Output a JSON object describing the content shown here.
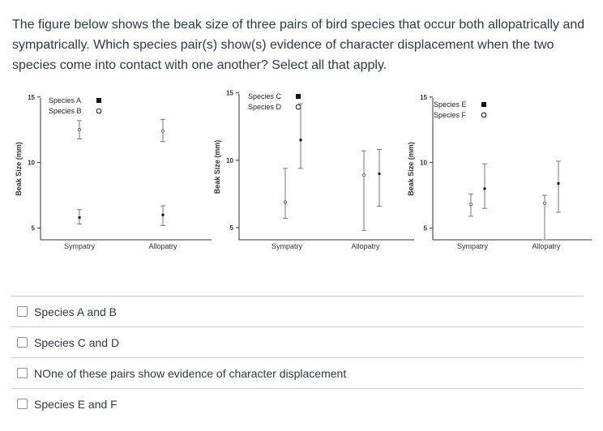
{
  "question": {
    "text": "The figure below shows the beak size of three pairs of bird species that occur both allopatrically and sympatrically. Which species pair(s) show(s) evidence of character displacement when the two species come into contact with one another? Select all that apply."
  },
  "options": [
    {
      "label": "Species A and B",
      "checked": false
    },
    {
      "label": "Species C and D",
      "checked": false
    },
    {
      "label": "NOne of these pairs show evidence of character displacement",
      "checked": false
    },
    {
      "label": "Species E and F",
      "checked": false
    }
  ],
  "colors": {
    "text": "#2d3b45",
    "divider": "#c7cdd1",
    "axis": "#333333",
    "error_bar": "#777777"
  },
  "chart_data": [
    {
      "type": "scatter",
      "ylabel": "Beak Size (mm)",
      "yticks": [
        5,
        10,
        15
      ],
      "ylim": [
        4,
        15
      ],
      "categories": [
        "Sympatry",
        "Allopatry"
      ],
      "legend": [
        {
          "name": "Species A",
          "marker": "filled-square"
        },
        {
          "name": "Species B",
          "marker": "open-circle"
        }
      ],
      "series": [
        {
          "name": "Species A",
          "marker": "filled",
          "points": [
            {
              "x": "Sympatry",
              "y": 5.8,
              "low": 5.3,
              "high": 6.4
            },
            {
              "x": "Allopatry",
              "y": 6.0,
              "low": 5.2,
              "high": 6.7
            }
          ]
        },
        {
          "name": "Species B",
          "marker": "open",
          "points": [
            {
              "x": "Sympatry",
              "y": 12.5,
              "low": 11.8,
              "high": 13.2
            },
            {
              "x": "Allopatry",
              "y": 12.4,
              "low": 11.6,
              "high": 13.3
            }
          ]
        }
      ]
    },
    {
      "type": "scatter",
      "ylabel": "Beak Size (mm)",
      "yticks": [
        5,
        10,
        15
      ],
      "ylim": [
        4,
        15
      ],
      "categories": [
        "Sympatry",
        "Allopatry"
      ],
      "legend": [
        {
          "name": "Species C",
          "marker": "filled-square"
        },
        {
          "name": "Species D",
          "marker": "open-circle"
        }
      ],
      "series": [
        {
          "name": "Species C",
          "marker": "filled",
          "points": [
            {
              "x": "Sympatry",
              "y": 11.5,
              "low": 9.4,
              "high": 14.2
            },
            {
              "x": "Allopatry",
              "y": 9.0,
              "low": 6.6,
              "high": 10.8
            }
          ]
        },
        {
          "name": "Species D",
          "marker": "open",
          "points": [
            {
              "x": "Sympatry",
              "y": 6.9,
              "low": 5.7,
              "high": 9.4
            },
            {
              "x": "Allopatry",
              "y": 8.9,
              "low": 4.8,
              "high": 10.7
            }
          ]
        }
      ]
    },
    {
      "type": "scatter",
      "ylabel": "Beak Size (mm)",
      "yticks": [
        5,
        10,
        15
      ],
      "ylim": [
        4,
        15
      ],
      "categories": [
        "Sympatry",
        "Allopatry"
      ],
      "legend": [
        {
          "name": "Species E",
          "marker": "filled-square"
        },
        {
          "name": "Species F",
          "marker": "open-circle"
        }
      ],
      "series": [
        {
          "name": "Species E",
          "marker": "filled",
          "points": [
            {
              "x": "Sympatry",
              "y": 8.0,
              "low": 6.5,
              "high": 9.9
            },
            {
              "x": "Allopatry",
              "y": 8.4,
              "low": 6.2,
              "high": 10.1
            }
          ]
        },
        {
          "name": "Species F",
          "marker": "open",
          "points": [
            {
              "x": "Sympatry",
              "y": 6.8,
              "low": 5.9,
              "high": 7.6
            },
            {
              "x": "Allopatry",
              "y": 6.9,
              "low": 4.1,
              "high": 7.5
            }
          ]
        }
      ]
    }
  ]
}
